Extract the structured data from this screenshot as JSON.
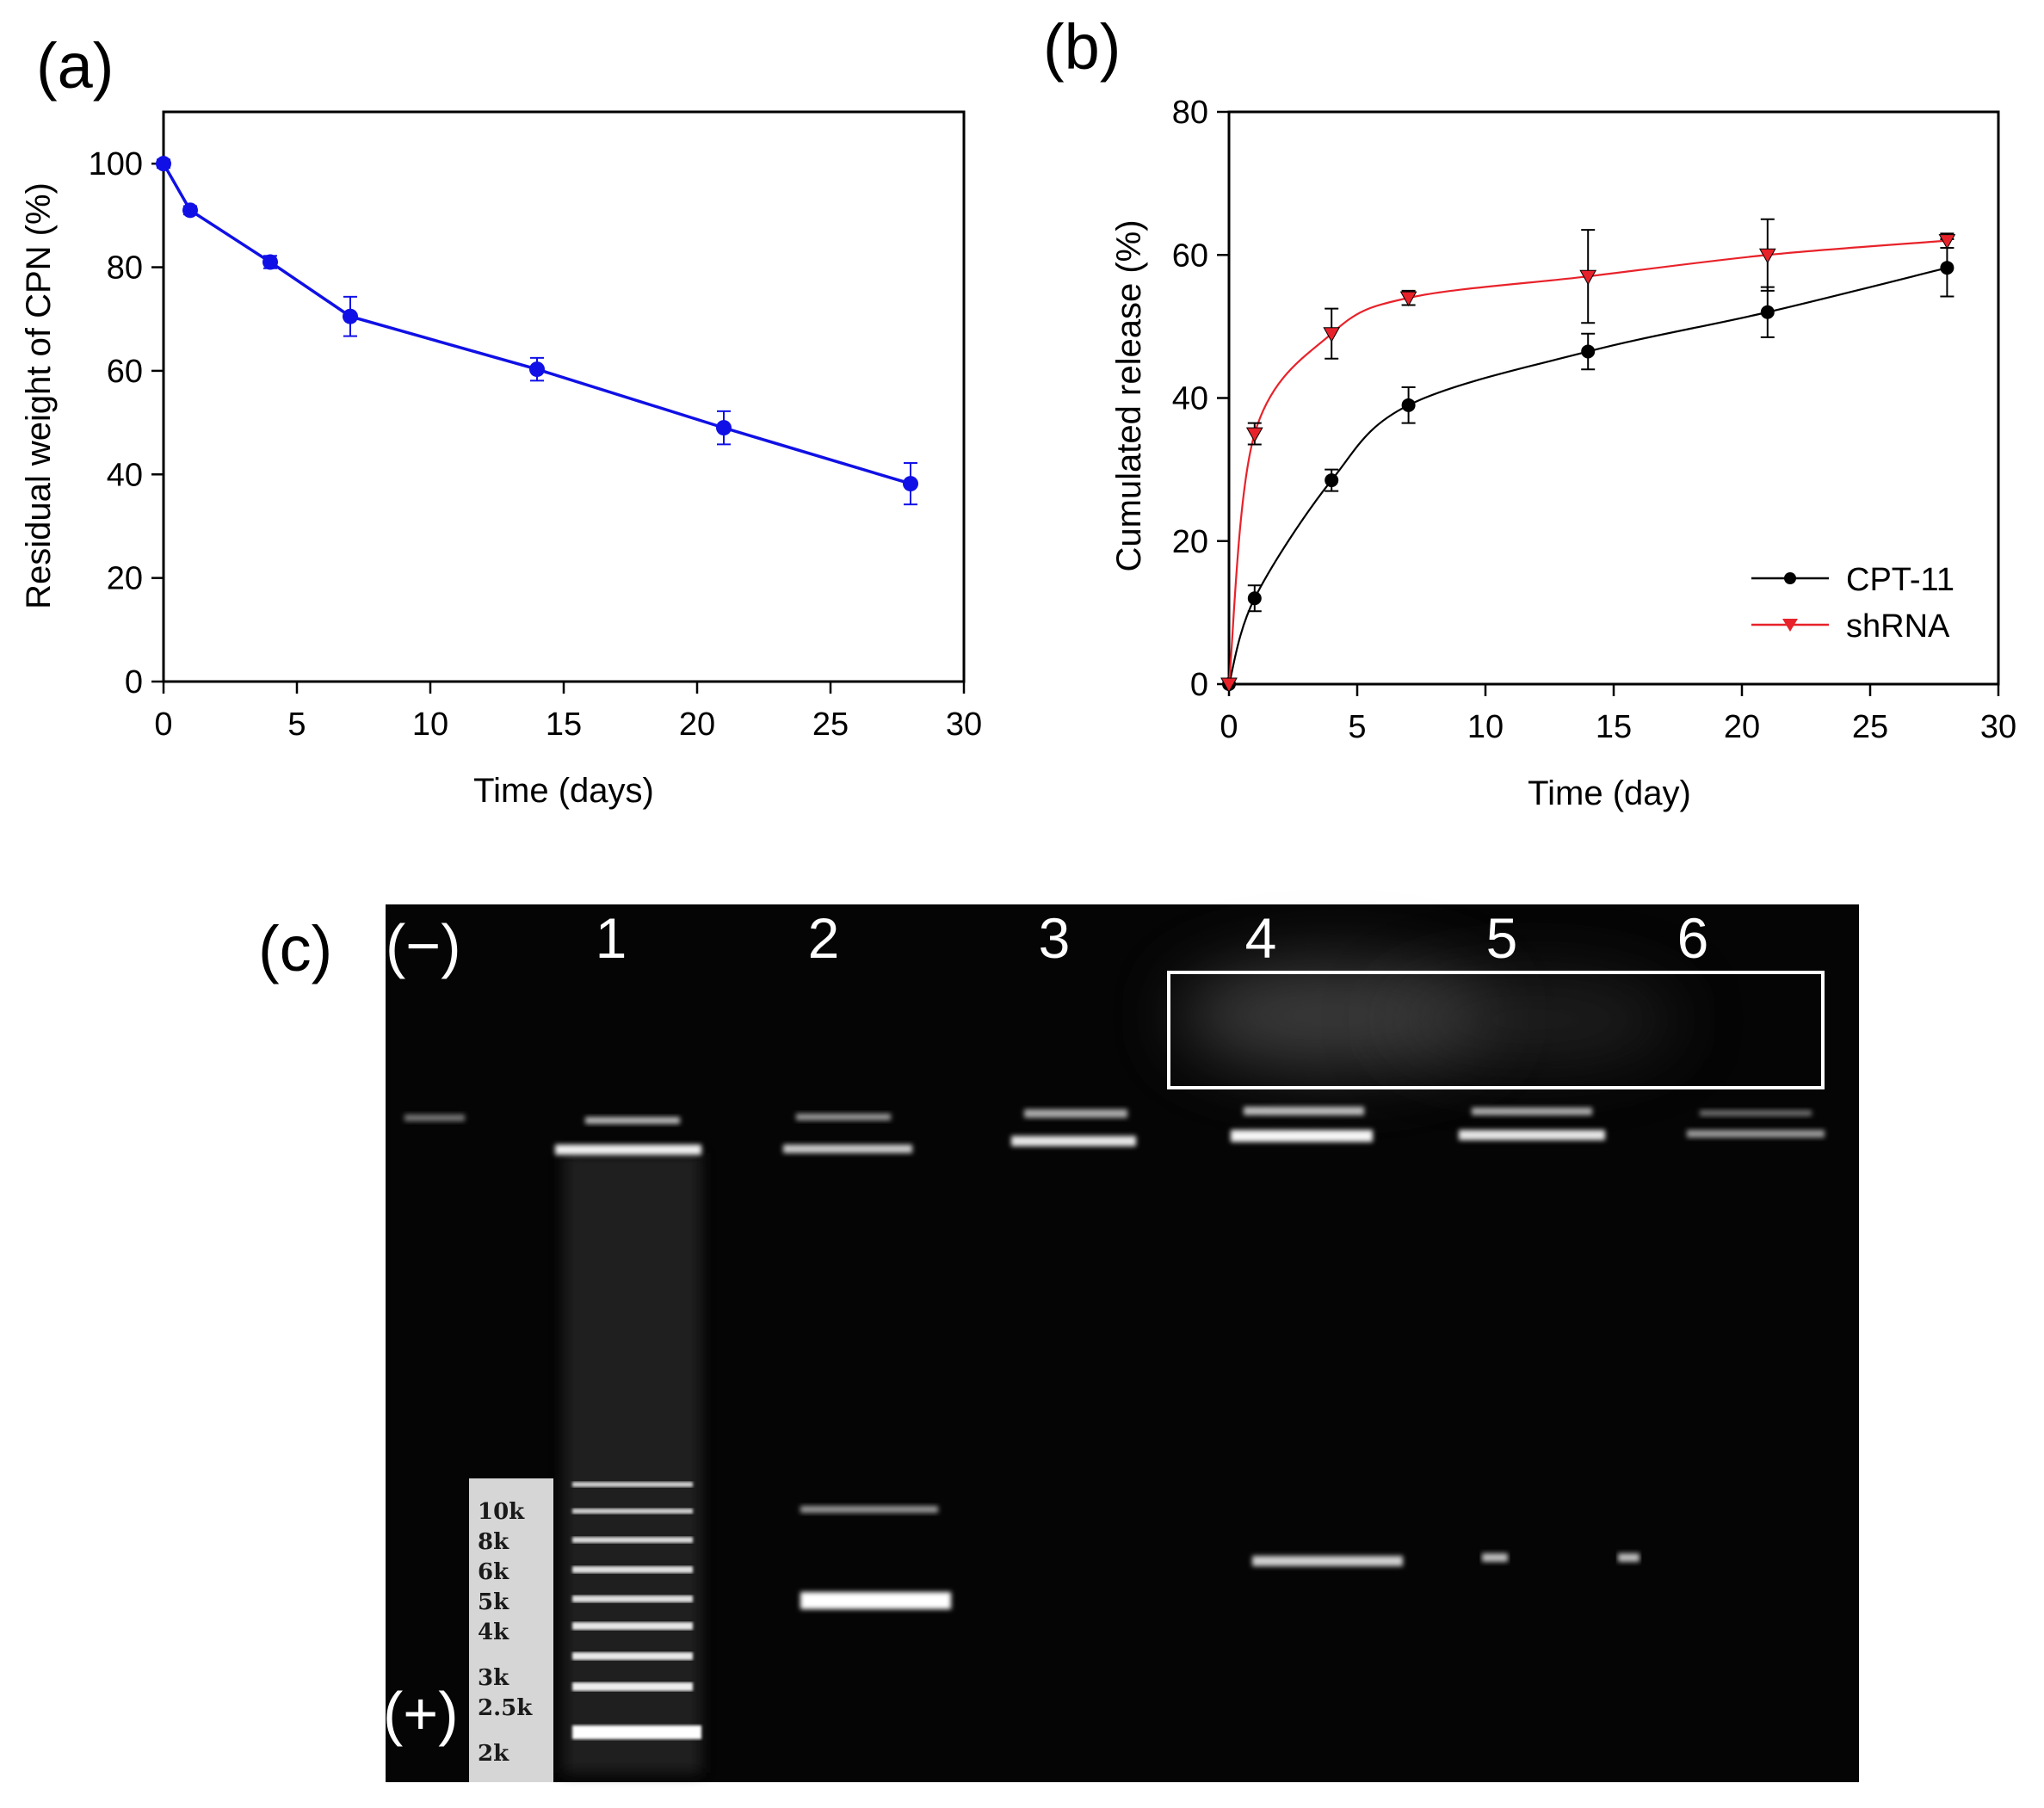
{
  "panels": {
    "a": {
      "label": "(a)"
    },
    "b": {
      "label": "(b)"
    },
    "c": {
      "label": "(c)"
    }
  },
  "chart_data": [
    {
      "id": "a",
      "type": "line",
      "title": "",
      "xlabel": "Time (days)",
      "ylabel": "Residual weight of CPN (%)",
      "xlim": [
        0,
        30
      ],
      "ylim": [
        0,
        110
      ],
      "xticks": [
        0,
        5,
        10,
        15,
        20,
        25,
        30
      ],
      "yticks": [
        0,
        20,
        40,
        60,
        80,
        100
      ],
      "grid": false,
      "series": [
        {
          "color": "#1010e6",
          "marker": "circle",
          "x": [
            0,
            1,
            4,
            7,
            14,
            21,
            28
          ],
          "y": [
            100,
            91,
            81,
            70.5,
            60.3,
            49,
            38.2
          ],
          "yerr": [
            0.8,
            0.8,
            1.2,
            3.8,
            2.2,
            3.2,
            4
          ]
        }
      ]
    },
    {
      "id": "b",
      "type": "line",
      "title": "",
      "xlabel": "Time (day)",
      "ylabel": "Cumulated release (%)",
      "xlim": [
        0,
        30
      ],
      "ylim": [
        0,
        80
      ],
      "xticks": [
        0,
        5,
        10,
        15,
        20,
        25,
        30
      ],
      "yticks": [
        0,
        20,
        40,
        60,
        80
      ],
      "grid": false,
      "legend": "bottom-right",
      "series": [
        {
          "name": "CPT-11",
          "color": "#000000",
          "marker": "circle",
          "x": [
            0,
            1,
            4,
            7,
            14,
            21,
            28
          ],
          "y": [
            0,
            12,
            28.5,
            39,
            46.5,
            52,
            58.2
          ],
          "yerr": [
            0,
            1.8,
            1.5,
            2.5,
            2.5,
            3.5,
            4
          ]
        },
        {
          "name": "shRNA",
          "color": "#e8222a",
          "marker": "triangle-down",
          "x": [
            0,
            1,
            4,
            7,
            14,
            21,
            28
          ],
          "y": [
            0,
            35,
            49,
            54,
            57,
            60,
            62
          ],
          "yerr": [
            0,
            1.5,
            3.5,
            1,
            6.5,
            5,
            1
          ]
        }
      ]
    }
  ],
  "gel": {
    "polarity_top": "(−)",
    "polarity_bottom": "(+)",
    "lanes": [
      "1",
      "2",
      "3",
      "4",
      "5",
      "6"
    ],
    "ladder": [
      "10k",
      "8k",
      "6k",
      "5k",
      "4k",
      "3k",
      "2.5k",
      "2k"
    ]
  }
}
